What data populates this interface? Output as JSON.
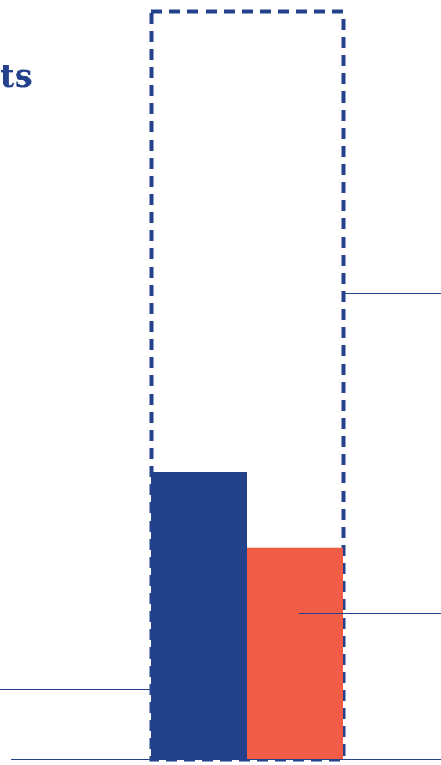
{
  "title_fragment": "ts",
  "colors": {
    "navy": "#24418c",
    "coral": "#f15c46",
    "outline": "#24418c",
    "leader": "#24418c"
  },
  "chart_data": {
    "type": "bar",
    "title": "",
    "xlabel": "",
    "ylabel": "",
    "grid": false,
    "legend": "none",
    "ylim": [
      0,
      100
    ],
    "reference_outline": {
      "name": "",
      "value": 100,
      "style": "dashed"
    },
    "series": [
      {
        "value": 38.5,
        "color": "#24418c"
      },
      {
        "value": 28.3,
        "color": "#f15c46"
      }
    ]
  }
}
